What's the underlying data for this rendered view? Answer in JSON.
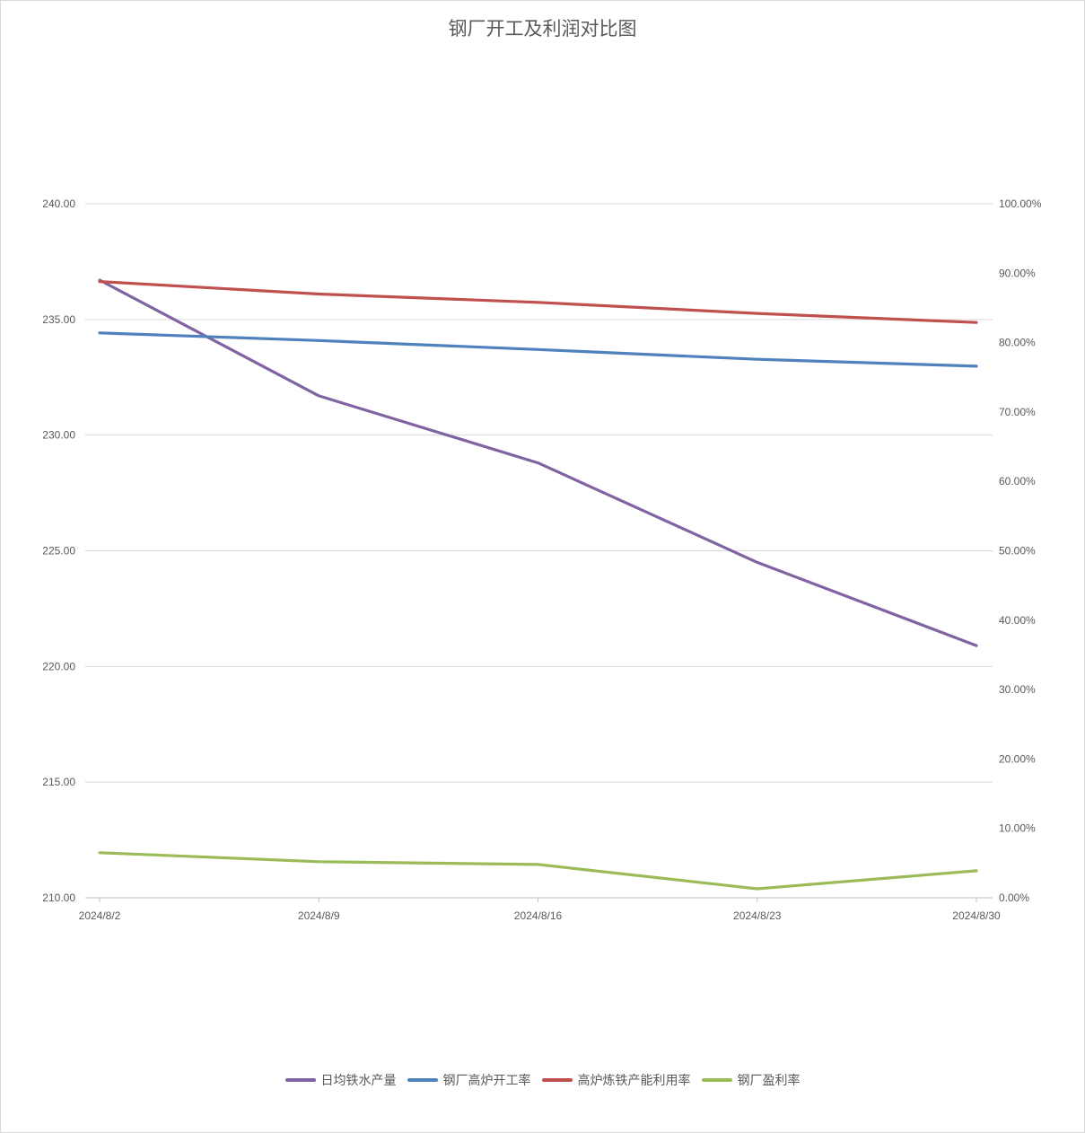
{
  "chart_data": {
    "type": "line",
    "title": "钢厂开工及利润对比图",
    "categories": [
      "2024/8/2",
      "2024/8/9",
      "2024/8/16",
      "2024/8/23",
      "2024/8/30"
    ],
    "y_left": {
      "ylim": [
        210,
        240
      ],
      "ticks": [
        "210.00",
        "215.00",
        "220.00",
        "225.00",
        "230.00",
        "235.00",
        "240.00"
      ]
    },
    "y_right": {
      "ylim": [
        0,
        1
      ],
      "ticks": [
        "0.00%",
        "10.00%",
        "20.00%",
        "30.00%",
        "40.00%",
        "50.00%",
        "60.00%",
        "70.00%",
        "80.00%",
        "90.00%",
        "100.00%"
      ]
    },
    "grid": true,
    "legend_position": "bottom",
    "series": [
      {
        "name": "日均铁水产量",
        "axis": "left",
        "color": "#8064a2",
        "values": [
          236.7,
          231.7,
          228.8,
          224.5,
          220.9
        ]
      },
      {
        "name": "钢厂高炉开工率",
        "axis": "right",
        "color": "#4f81bd",
        "values": [
          0.814,
          0.803,
          0.79,
          0.776,
          0.766
        ]
      },
      {
        "name": "高炉炼铁产能利用率",
        "axis": "right",
        "color": "#c0504d",
        "values": [
          0.888,
          0.87,
          0.858,
          0.842,
          0.829
        ]
      },
      {
        "name": "钢厂盈利率",
        "axis": "right",
        "color": "#9bbb59",
        "values": [
          0.065,
          0.052,
          0.048,
          0.013,
          0.039
        ]
      }
    ]
  }
}
